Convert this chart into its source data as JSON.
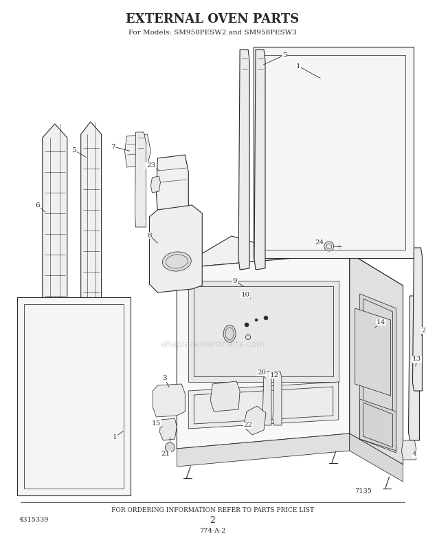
{
  "title": "EXTERNAL OVEN PARTS",
  "subtitle": "For Models: SM958PESW2 and SM958PESW3",
  "footer1": "FOR ORDERING INFORMATION REFER TO PARTS PRICE LIST",
  "footer2": "4315339",
  "footer3": "2",
  "footer4": "774-A-2",
  "footer5": "7135",
  "bg_color": "#ffffff",
  "lc": "#2a2a2a",
  "watermark": "eReplacementParts.com"
}
